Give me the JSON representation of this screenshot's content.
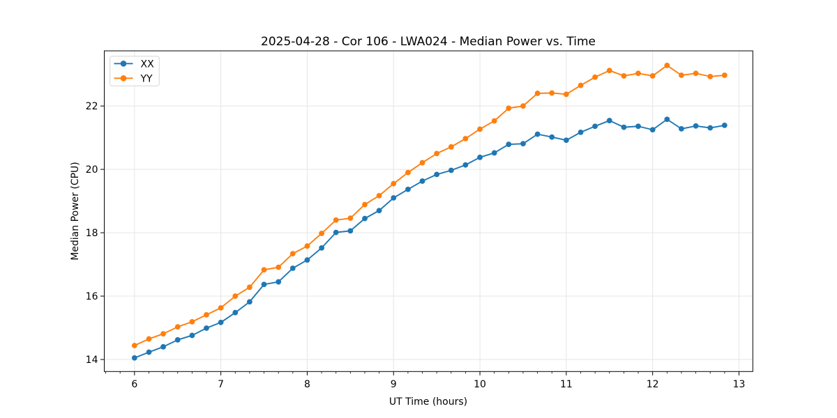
{
  "figure": {
    "background": "#ffffff",
    "frame_color": "#000000",
    "grid_color": "#e5e5e5"
  },
  "chart_data": {
    "type": "line",
    "title": "2025-04-28 - Cor 106 - LWA024 - Median Power vs. Time",
    "xlabel": "UT Time (hours)",
    "ylabel": "Median Power (CPU)",
    "xlim": [
      5.65,
      13.16
    ],
    "ylim": [
      13.62,
      23.74
    ],
    "xticks": [
      6,
      7,
      8,
      9,
      10,
      11,
      12,
      13
    ],
    "yticks": [
      14,
      16,
      18,
      20,
      22
    ],
    "x_minor_step": 0.16667,
    "grid": true,
    "legend": {
      "position": "upper left",
      "entries": [
        "XX",
        "YY"
      ]
    },
    "marker": "circle",
    "x": [
      6.0,
      6.167,
      6.333,
      6.5,
      6.667,
      6.833,
      7.0,
      7.167,
      7.333,
      7.5,
      7.667,
      7.833,
      8.0,
      8.167,
      8.333,
      8.5,
      8.667,
      8.833,
      9.0,
      9.167,
      9.333,
      9.5,
      9.667,
      9.833,
      10.0,
      10.167,
      10.333,
      10.5,
      10.667,
      10.833,
      11.0,
      11.167,
      11.333,
      11.5,
      11.667,
      11.833,
      12.0,
      12.167,
      12.333,
      12.5,
      12.667,
      12.833
    ],
    "series": [
      {
        "name": "XX",
        "color": "#1f77b4",
        "values": [
          14.05,
          14.23,
          14.4,
          14.62,
          14.76,
          14.99,
          15.17,
          15.48,
          15.82,
          16.37,
          16.45,
          16.88,
          17.14,
          17.52,
          18.01,
          18.06,
          18.45,
          18.7,
          19.1,
          19.37,
          19.63,
          19.84,
          19.97,
          20.14,
          20.38,
          20.52,
          20.79,
          20.81,
          21.11,
          21.02,
          20.92,
          21.17,
          21.36,
          21.54,
          21.33,
          21.36,
          21.25,
          21.58,
          21.28,
          21.37,
          21.31,
          21.39
        ]
      },
      {
        "name": "YY",
        "color": "#ff7f0e",
        "values": [
          14.44,
          14.65,
          14.81,
          15.03,
          15.19,
          15.41,
          15.63,
          16.0,
          16.28,
          16.83,
          16.91,
          17.34,
          17.58,
          17.98,
          18.4,
          18.46,
          18.89,
          19.17,
          19.55,
          19.9,
          20.21,
          20.5,
          20.71,
          20.97,
          21.27,
          21.53,
          21.93,
          22.0,
          22.4,
          22.41,
          22.37,
          22.65,
          22.91,
          23.12,
          22.95,
          23.03,
          22.95,
          23.28,
          22.97,
          23.03,
          22.93,
          22.97
        ]
      }
    ]
  }
}
